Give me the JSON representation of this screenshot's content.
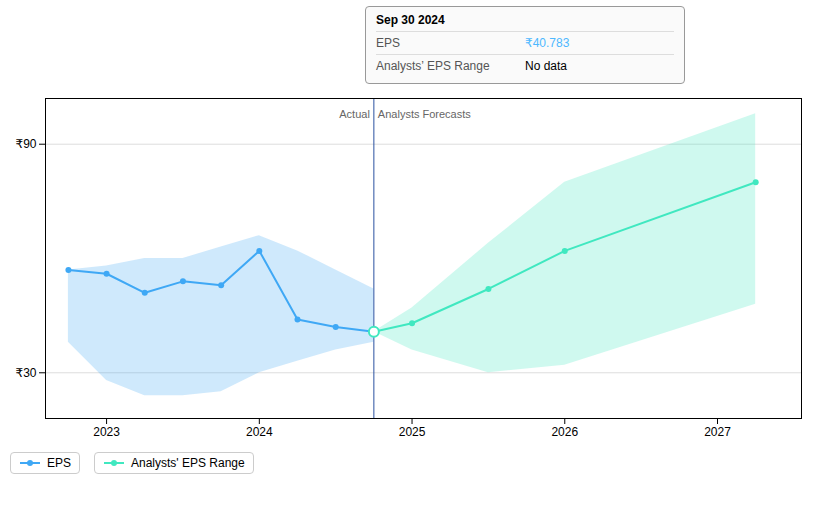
{
  "chart_data": {
    "type": "line",
    "xlim": [
      2022.6,
      2027.55
    ],
    "xticks": [
      2023,
      2024,
      2025,
      2026,
      2027
    ],
    "ylim": [
      18,
      102
    ],
    "yticks": [
      {
        "value": 30,
        "label": "₹30"
      },
      {
        "value": 90,
        "label": "₹90"
      }
    ],
    "grid": true,
    "legend": "bottom left",
    "divider": 2024.75,
    "annotations": [
      "Actual",
      "Analysts Forecasts"
    ],
    "tooltip": {
      "title": "Sep 30 2024",
      "rows": [
        {
          "label": "EPS",
          "value": "₹40.783",
          "color": "#4db8ff"
        },
        {
          "label": "Analysts’ EPS Range",
          "value": "No data"
        }
      ]
    },
    "series": [
      {
        "name": "EPS",
        "color": "#3fa8f5",
        "marker": "circle",
        "x": [
          2022.75,
          2023.0,
          2023.25,
          2023.5,
          2023.75,
          2024.0,
          2024.25,
          2024.5,
          2024.75
        ],
        "values": [
          57,
          56,
          51,
          54,
          53,
          62,
          44,
          42,
          40.783
        ],
        "upper": [
          57,
          58,
          60,
          60,
          63,
          66,
          62,
          57,
          52
        ],
        "lower": [
          38,
          28,
          24,
          24,
          25,
          30,
          33,
          36,
          38
        ]
      },
      {
        "name": "Analysts' EPS Range",
        "color": "#40e8c0",
        "marker": "circle",
        "x": [
          2024.75,
          2025.0,
          2025.5,
          2026.0,
          2027.25
        ],
        "values": [
          40.783,
          43,
          52,
          62,
          80
        ],
        "upper": [
          40.783,
          47,
          64,
          80,
          98
        ],
        "lower": [
          40.783,
          36,
          30,
          32,
          48
        ]
      }
    ]
  }
}
